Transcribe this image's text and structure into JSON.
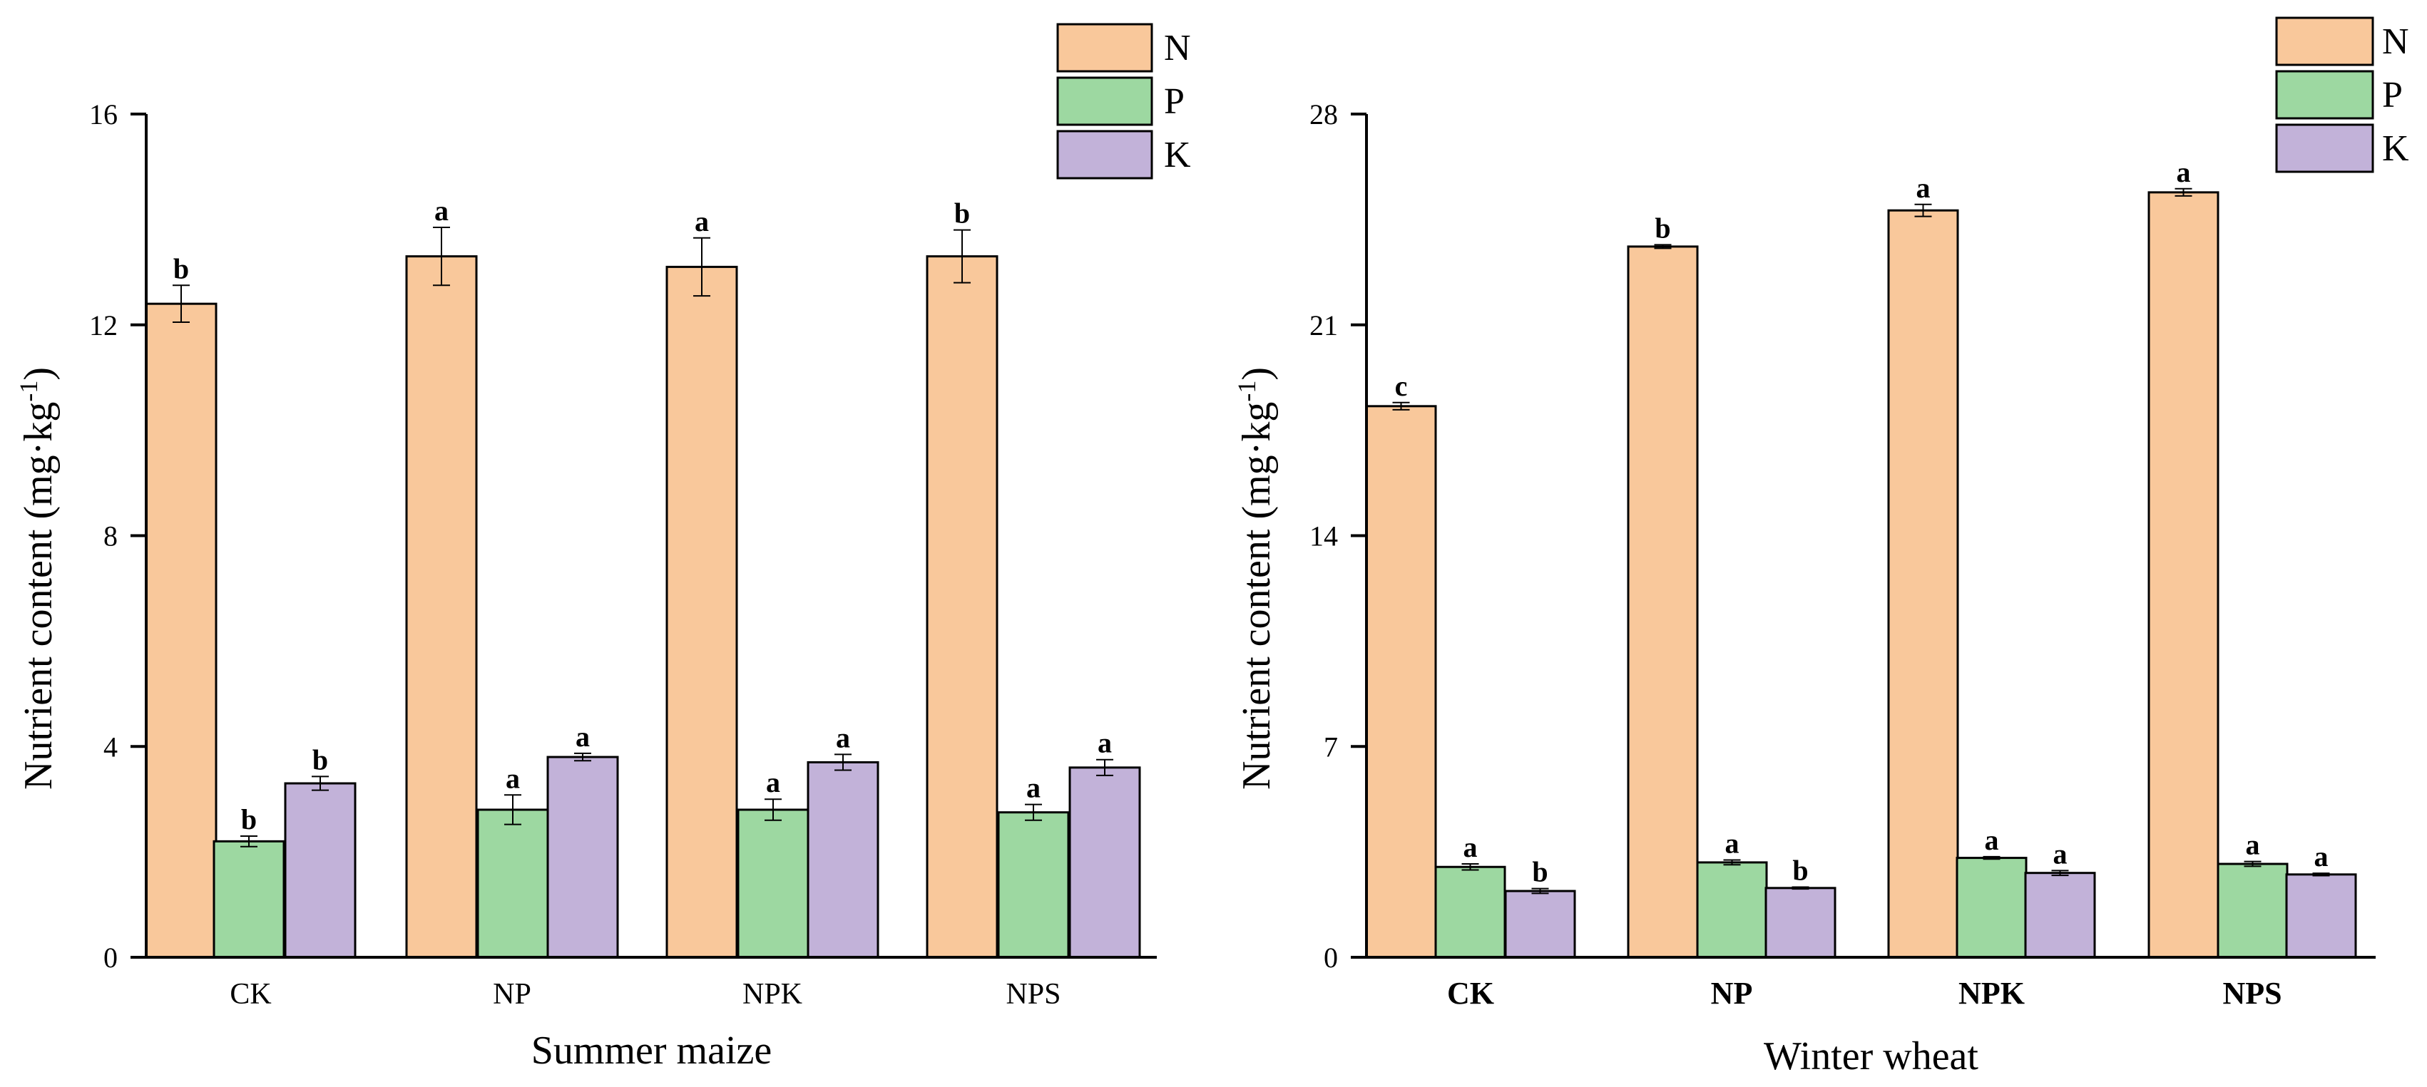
{
  "chart_data": [
    {
      "type": "bar",
      "panel": "left",
      "xlabel": "Summer maize",
      "ylabel_main": "Nutrient content (mg·kg",
      "ylabel_sup": "-1",
      "ylabel_close": ")",
      "ylim": [
        0,
        16
      ],
      "yticks": [
        "0",
        "4",
        "8",
        "12",
        "16"
      ],
      "ytick_values": [
        0,
        4,
        8,
        12,
        16
      ],
      "categories": [
        "CK",
        "NP",
        "NPK",
        "NPS"
      ],
      "legend_position": "top-right",
      "series": [
        {
          "name": "N",
          "color": "#F9C89B",
          "values": [
            12.4,
            13.3,
            13.1,
            13.3
          ],
          "errors": [
            0.35,
            0.55,
            0.55,
            0.5
          ],
          "letters": [
            "b",
            "a",
            "a",
            "b"
          ]
        },
        {
          "name": "P",
          "color": "#9DD8A1",
          "values": [
            2.2,
            2.8,
            2.8,
            2.75
          ],
          "errors": [
            0.1,
            0.28,
            0.2,
            0.15
          ],
          "letters": [
            "b",
            "a",
            "a",
            "a"
          ]
        },
        {
          "name": "K",
          "color": "#C2B2D9",
          "values": [
            3.3,
            3.8,
            3.7,
            3.6
          ],
          "errors": [
            0.13,
            0.07,
            0.15,
            0.15
          ],
          "letters": [
            "b",
            "a",
            "a",
            "a"
          ]
        }
      ]
    },
    {
      "type": "bar",
      "panel": "right",
      "xlabel": "Winter wheat",
      "ylabel_main": "Nutrient content (mg·kg",
      "ylabel_sup": "-1",
      "ylabel_close": ")",
      "ylim": [
        0,
        28
      ],
      "yticks": [
        "0",
        "7",
        "14",
        "21",
        "28"
      ],
      "ytick_values": [
        0,
        7,
        14,
        21,
        28
      ],
      "categories": [
        "CK",
        "NP",
        "NPK",
        "NPS"
      ],
      "legend_position": "top-right",
      "series": [
        {
          "name": "N",
          "color": "#F9C89B",
          "values": [
            18.3,
            23.6,
            24.8,
            25.4
          ],
          "errors": [
            0.12,
            0.06,
            0.2,
            0.12
          ],
          "letters": [
            "c",
            "b",
            "a",
            "a"
          ]
        },
        {
          "name": "P",
          "color": "#9DD8A1",
          "values": [
            3.0,
            3.15,
            3.3,
            3.1
          ],
          "errors": [
            0.1,
            0.08,
            0.04,
            0.08
          ],
          "letters": [
            "a",
            "a",
            "a",
            "a"
          ]
        },
        {
          "name": "K",
          "color": "#C2B2D9",
          "values": [
            2.2,
            2.3,
            2.8,
            2.75
          ],
          "errors": [
            0.08,
            0.03,
            0.08,
            0.04
          ],
          "letters": [
            "b",
            "b",
            "a",
            "a"
          ]
        }
      ]
    }
  ]
}
